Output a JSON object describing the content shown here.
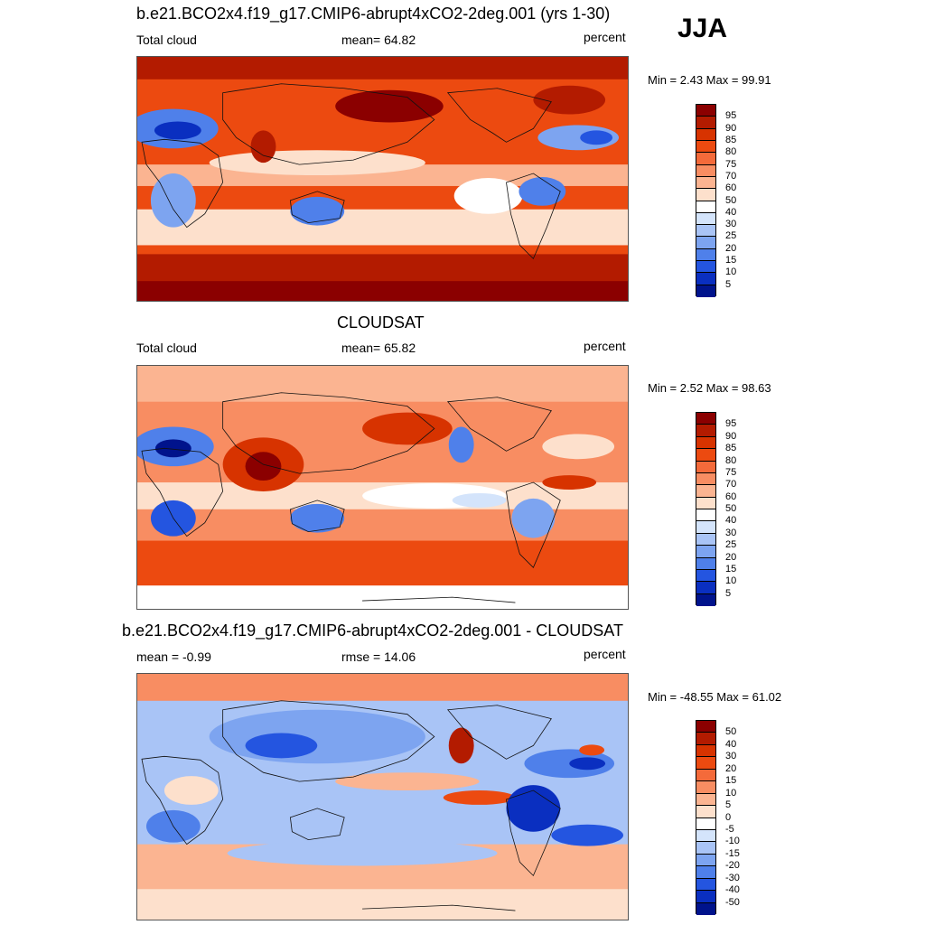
{
  "season": "JJA",
  "panels": [
    {
      "title": "b.e21.BCO2x4.f19_g17.CMIP6-abrupt4xCO2-2deg.001 (yrs 1-30)",
      "left_label": "Total cloud",
      "center_label": "mean=  64.82",
      "right_label": "percent",
      "minmax": "Min =   2.43 Max =  99.91",
      "legend_labels": [
        "95",
        "90",
        "85",
        "80",
        "75",
        "70",
        "60",
        "50",
        "40",
        "30",
        "25",
        "20",
        "15",
        "10",
        "5"
      ],
      "legend_colors": [
        "#8b0000",
        "#b31b00",
        "#d73300",
        "#ec4a10",
        "#f46a3a",
        "#f88d62",
        "#fbb491",
        "#fde0cc",
        "#ffffff",
        "#d4e4fb",
        "#a9c4f6",
        "#7da4f0",
        "#4f80ea",
        "#2455e0",
        "#0a2fc0",
        "#00138c"
      ]
    },
    {
      "title": "CLOUDSAT",
      "left_label": "Total cloud",
      "center_label": "mean=  65.82",
      "right_label": "percent",
      "minmax": "Min =   2.52 Max =  98.63",
      "legend_labels": [
        "95",
        "90",
        "85",
        "80",
        "75",
        "70",
        "60",
        "50",
        "40",
        "30",
        "25",
        "20",
        "15",
        "10",
        "5"
      ],
      "legend_colors": [
        "#8b0000",
        "#b31b00",
        "#d73300",
        "#ec4a10",
        "#f46a3a",
        "#f88d62",
        "#fbb491",
        "#fde0cc",
        "#ffffff",
        "#d4e4fb",
        "#a9c4f6",
        "#7da4f0",
        "#4f80ea",
        "#2455e0",
        "#0a2fc0",
        "#00138c"
      ]
    },
    {
      "title": "b.e21.BCO2x4.f19_g17.CMIP6-abrupt4xCO2-2deg.001 - CLOUDSAT",
      "left_label": "mean =  -0.99",
      "center_label": "rmse =  14.06",
      "right_label": "percent",
      "minmax": "Min = -48.55 Max =  61.02",
      "legend_labels": [
        "50",
        "40",
        "30",
        "20",
        "15",
        "10",
        "5",
        "0",
        "-5",
        "-10",
        "-15",
        "-20",
        "-30",
        "-40",
        "-50"
      ],
      "legend_colors": [
        "#8b0000",
        "#b31b00",
        "#d73300",
        "#ec4a10",
        "#f46a3a",
        "#f88d62",
        "#fbb491",
        "#fde0cc",
        "#ffffff",
        "#d4e4fb",
        "#a9c4f6",
        "#7da4f0",
        "#4f80ea",
        "#2455e0",
        "#0a2fc0",
        "#00138c"
      ]
    }
  ]
}
